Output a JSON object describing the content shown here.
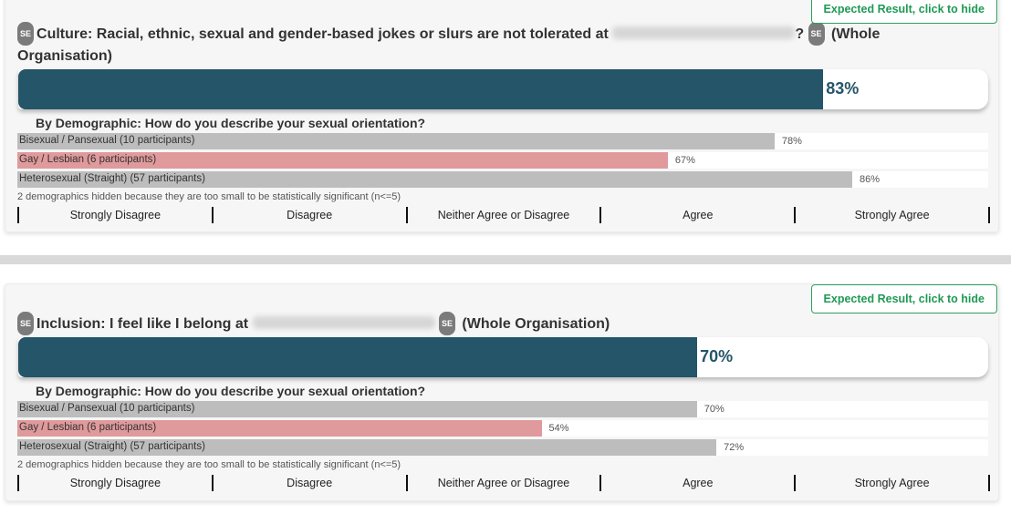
{
  "questions": [
    {
      "se_badge": "SE",
      "title_before": "Culture: Racial, ethnic, sexual and gender-based jokes or slurs are not tolerated at ",
      "title_after": "?",
      "scope": "(Whole Organisation)",
      "expected_button": "Expected Result, click to hide",
      "overall_pct": 83,
      "overall_label": "83%",
      "demo_heading": "By Demographic: How do you describe your sexual orientation?",
      "rows": [
        {
          "label": "Bisexual / Pansexual (10 participants)",
          "pct": 78,
          "pct_label": "78%",
          "color": "gray"
        },
        {
          "label": "Gay / Lesbian (6 participants)",
          "pct": 67,
          "pct_label": "67%",
          "color": "pink"
        },
        {
          "label": "Heterosexual (Straight) (57 participants)",
          "pct": 86,
          "pct_label": "86%",
          "color": "gray"
        }
      ],
      "note": "2 demographics hidden because they are too small to be statistically significant (n<=5)"
    },
    {
      "se_badge": "SE",
      "title_before": "Inclusion: I feel like I belong at ",
      "title_after": "",
      "scope": "(Whole Organisation)",
      "expected_button": "Expected Result, click to hide",
      "overall_pct": 70,
      "overall_label": "70%",
      "demo_heading": "By Demographic: How do you describe your sexual orientation?",
      "rows": [
        {
          "label": "Bisexual / Pansexual (10 participants)",
          "pct": 70,
          "pct_label": "70%",
          "color": "gray"
        },
        {
          "label": "Gay / Lesbian (6 participants)",
          "pct": 54,
          "pct_label": "54%",
          "color": "pink"
        },
        {
          "label": "Heterosexual (Straight) (57 participants)",
          "pct": 72,
          "pct_label": "72%",
          "color": "gray"
        }
      ],
      "note": "2 demographics hidden because they are too small to be statistically significant (n<=5)"
    }
  ],
  "scale": [
    "Strongly Disagree",
    "Disagree",
    "Neither Agree or Disagree",
    "Agree",
    "Strongly Agree"
  ],
  "colors": {
    "main": "#245568",
    "gray": "#bdbdbd",
    "pink": "#e09a9c",
    "button": "#1f9a55"
  }
}
